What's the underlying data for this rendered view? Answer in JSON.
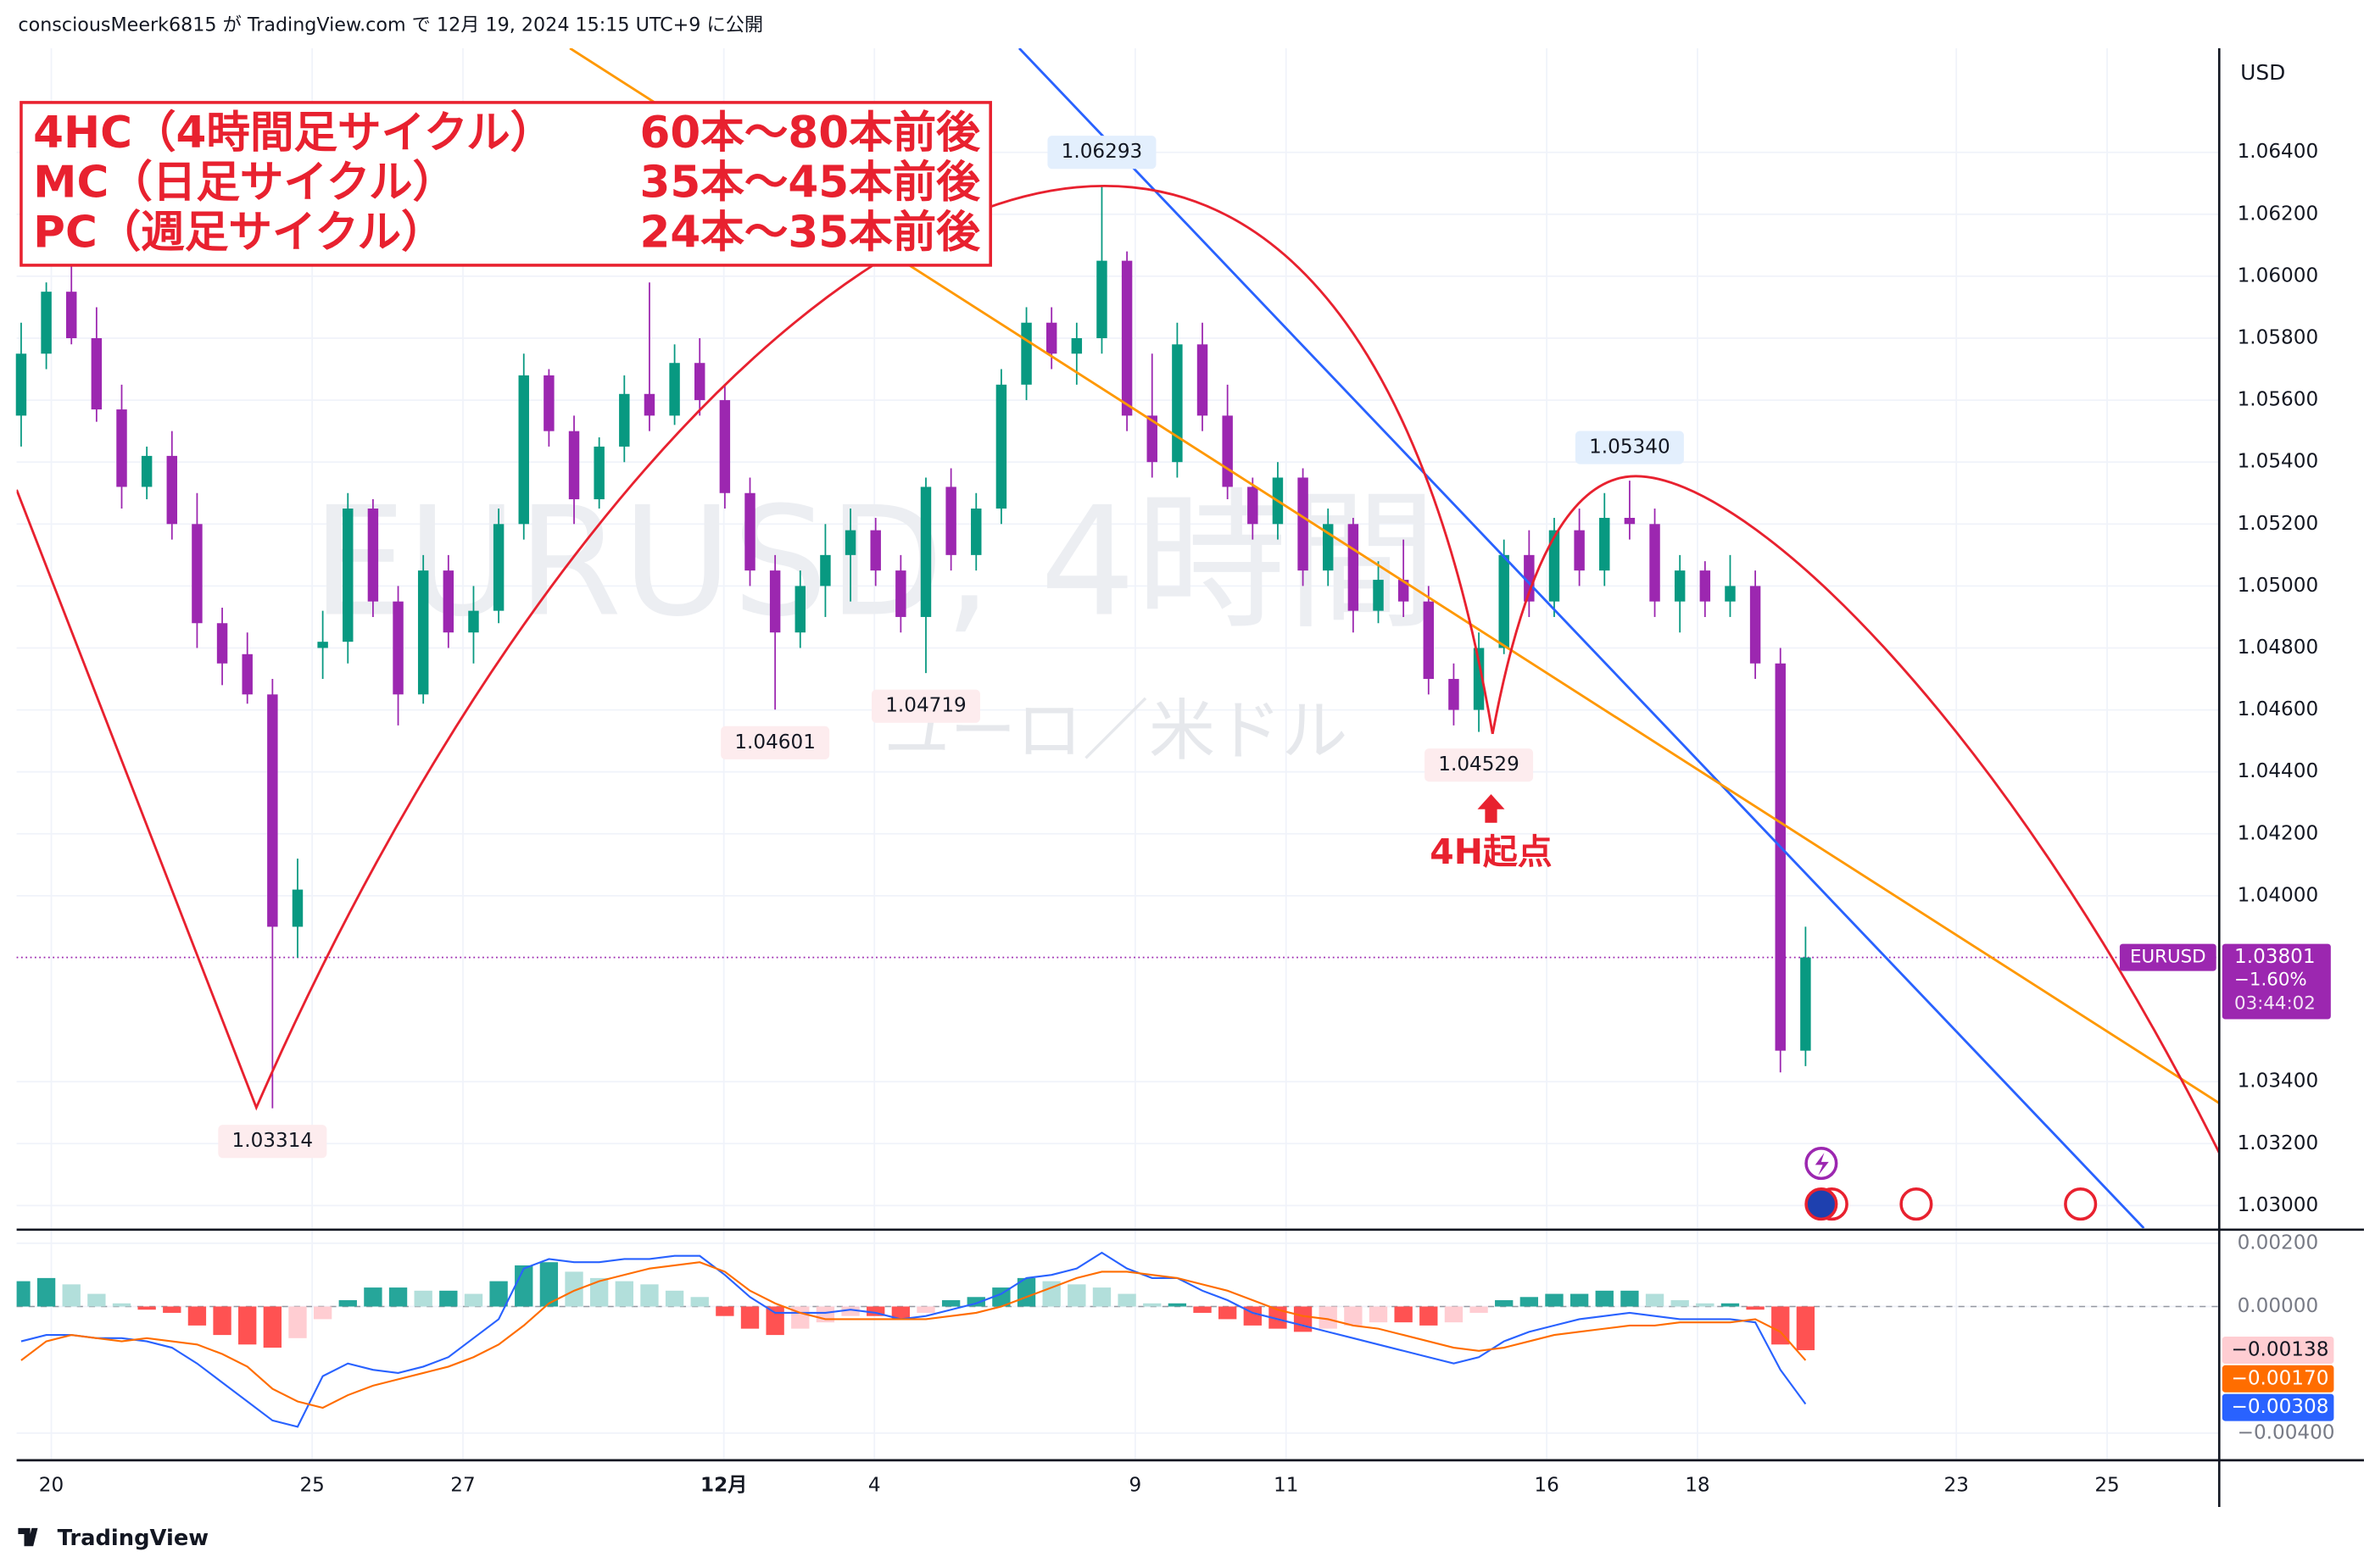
{
  "header": {
    "text": "consciousMeerk6815 が TradingView.com で 12月 19, 2024 15:15 UTC+9 に公開"
  },
  "footer": {
    "brand": "TradingView"
  },
  "chart_data": {
    "type": "candlestick",
    "title": "EURUSD, 4時間",
    "subtitle": "ユーロ／米ドル",
    "currency": "USD",
    "up_color": "#089981",
    "down_color": "#9c27b0",
    "grid": true,
    "open": [
      1.0555,
      1.0575,
      1.0595,
      1.058,
      1.0557,
      1.0532,
      1.0542,
      1.052,
      1.0488,
      1.0478,
      1.0465,
      1.039,
      1.048,
      1.0482,
      1.0525,
      1.0495,
      1.0465,
      1.0505,
      1.0485,
      1.0492,
      1.052,
      1.0568,
      1.055,
      1.0528,
      1.0545,
      1.0562,
      1.0555,
      1.0572,
      1.056,
      1.053,
      1.0505,
      1.0485,
      1.05,
      1.051,
      1.0518,
      1.0505,
      1.049,
      1.0532,
      1.051,
      1.0525,
      1.0565,
      1.0585,
      1.0575,
      1.058,
      1.0605,
      1.0555,
      1.054,
      1.0578,
      1.0555,
      1.0532,
      1.052,
      1.0535,
      1.0505,
      1.052,
      1.0492,
      1.0502,
      1.0495,
      1.047,
      1.046,
      1.048,
      1.051,
      1.0495,
      1.0518,
      1.0505,
      1.0522,
      1.052,
      1.0495,
      1.0505,
      1.0495,
      1.05,
      1.0475,
      1.035
    ],
    "high": [
      1.0585,
      1.0598,
      1.0605,
      1.059,
      1.0565,
      1.0545,
      1.055,
      1.053,
      1.0493,
      1.0485,
      1.047,
      1.0412,
      1.0492,
      1.053,
      1.0528,
      1.05,
      1.051,
      1.051,
      1.05,
      1.0525,
      1.0575,
      1.057,
      1.0555,
      1.0548,
      1.0568,
      1.0598,
      1.0578,
      1.058,
      1.0565,
      1.0535,
      1.051,
      1.0505,
      1.052,
      1.0525,
      1.0522,
      1.051,
      1.0535,
      1.0538,
      1.053,
      1.057,
      1.059,
      1.059,
      1.0585,
      1.06293,
      1.0608,
      1.0575,
      1.0585,
      1.0585,
      1.0565,
      1.0535,
      1.054,
      1.0538,
      1.0525,
      1.0522,
      1.0508,
      1.0515,
      1.05,
      1.0475,
      1.0485,
      1.0515,
      1.0518,
      1.0522,
      1.0525,
      1.053,
      1.0534,
      1.0525,
      1.051,
      1.0508,
      1.051,
      1.0505,
      1.048,
      1.039
    ],
    "low": [
      1.0545,
      1.057,
      1.0578,
      1.0553,
      1.0525,
      1.0528,
      1.0515,
      1.048,
      1.0468,
      1.0462,
      1.03314,
      1.038,
      1.047,
      1.0475,
      1.049,
      1.0455,
      1.0462,
      1.048,
      1.0475,
      1.0488,
      1.0515,
      1.0545,
      1.052,
      1.0525,
      1.054,
      1.055,
      1.0552,
      1.0555,
      1.0525,
      1.05,
      1.04601,
      1.048,
      1.049,
      1.0495,
      1.05,
      1.0485,
      1.04719,
      1.0505,
      1.0505,
      1.052,
      1.056,
      1.057,
      1.0565,
      1.0575,
      1.055,
      1.0535,
      1.0535,
      1.055,
      1.0528,
      1.0515,
      1.0515,
      1.05,
      1.05,
      1.0485,
      1.0488,
      1.049,
      1.0465,
      1.0455,
      1.04529,
      1.0478,
      1.049,
      1.049,
      1.05,
      1.05,
      1.0515,
      1.049,
      1.0485,
      1.049,
      1.049,
      1.047,
      1.0343,
      1.0345
    ],
    "close": [
      1.0575,
      1.0595,
      1.058,
      1.0557,
      1.0532,
      1.0542,
      1.052,
      1.0488,
      1.0475,
      1.0465,
      1.039,
      1.0402,
      1.0482,
      1.0525,
      1.0495,
      1.0465,
      1.0505,
      1.0485,
      1.0492,
      1.052,
      1.0568,
      1.055,
      1.0528,
      1.0545,
      1.0562,
      1.0555,
      1.0572,
      1.056,
      1.053,
      1.0505,
      1.0485,
      1.05,
      1.051,
      1.0518,
      1.0505,
      1.049,
      1.0532,
      1.051,
      1.0525,
      1.0565,
      1.0585,
      1.0575,
      1.058,
      1.0605,
      1.0555,
      1.054,
      1.0578,
      1.0555,
      1.0532,
      1.052,
      1.0535,
      1.0505,
      1.052,
      1.0492,
      1.0502,
      1.0495,
      1.047,
      1.046,
      1.048,
      1.051,
      1.0495,
      1.0518,
      1.0505,
      1.0522,
      1.052,
      1.0495,
      1.0505,
      1.0495,
      1.05,
      1.0475,
      1.035,
      1.03801
    ],
    "xlim": [
      -0.18,
      87.46
    ],
    "xticks": [
      {
        "value": 1.2,
        "label": "20"
      },
      {
        "value": 11.58,
        "label": "25"
      },
      {
        "value": 17.58,
        "label": "27"
      },
      {
        "value": 27.96,
        "label": "12月"
      },
      {
        "value": 33.95,
        "label": "4"
      },
      {
        "value": 44.33,
        "label": "9"
      },
      {
        "value": 50.33,
        "label": "11"
      },
      {
        "value": 60.7,
        "label": "16"
      },
      {
        "value": 66.7,
        "label": "18"
      },
      {
        "value": 77.0,
        "label": "23"
      },
      {
        "value": 83.0,
        "label": "25"
      }
    ],
    "ylim": [
      1.02927,
      1.06736
    ],
    "yticks": [
      {
        "value": 1.064,
        "label": "1.06400"
      },
      {
        "value": 1.062,
        "label": "1.06200"
      },
      {
        "value": 1.06,
        "label": "1.06000"
      },
      {
        "value": 1.058,
        "label": "1.05800"
      },
      {
        "value": 1.056,
        "label": "1.05600"
      },
      {
        "value": 1.054,
        "label": "1.05400"
      },
      {
        "value": 1.052,
        "label": "1.05200"
      },
      {
        "value": 1.05,
        "label": "1.05000"
      },
      {
        "value": 1.048,
        "label": "1.04800"
      },
      {
        "value": 1.046,
        "label": "1.04600"
      },
      {
        "value": 1.044,
        "label": "1.04400"
      },
      {
        "value": 1.042,
        "label": "1.04200"
      },
      {
        "value": 1.04,
        "label": "1.04000"
      },
      {
        "value": 1.034,
        "label": "1.03400"
      },
      {
        "value": 1.032,
        "label": "1.03200"
      },
      {
        "value": 1.03,
        "label": "1.03000"
      }
    ],
    "high_marks": [
      {
        "value": 1.06293,
        "label": "1.06293"
      },
      {
        "value": 1.0534,
        "label": "1.05340"
      }
    ],
    "low_marks": [
      1.04601,
      1.04719,
      1.04529,
      1.03314
    ],
    "symbol": "EURUSD",
    "last_price": 1.03801,
    "change": {
      "value": -1.6,
      "label": "−1.60%"
    },
    "countdown": "03:44:02",
    "note_lines": [
      [
        "4HC（4時間足サイクル）",
        "60本〜80本前後"
      ],
      [
        "MC（日足サイクル）",
        "35本〜45本前後"
      ],
      [
        "PC（週足サイクル）",
        "24本〜35本前後"
      ]
    ],
    "callout": "4H起点",
    "indicator": {
      "type": "macd",
      "ylim": [
        -0.00481,
        0.00238
      ],
      "yticks": [
        {
          "value": 0.002,
          "label": "0.00200"
        },
        {
          "value": 0,
          "label": "0.00000"
        },
        {
          "value": -0.004,
          "label": "−0.00400"
        }
      ],
      "histogram": {
        "values": [
          0.0008,
          0.0009,
          0.0007,
          0.0004,
          0.0001,
          -0.0001,
          -0.0002,
          -0.0006,
          -0.0009,
          -0.0012,
          -0.0013,
          -0.001,
          -0.0004,
          0.0002,
          0.0006,
          0.0006,
          0.0005,
          0.0005,
          0.0004,
          0.0008,
          0.0013,
          0.0014,
          0.0011,
          0.0009,
          0.0008,
          0.0007,
          0.0005,
          0.0003,
          -0.0003,
          -0.0007,
          -0.0009,
          -0.0007,
          -0.0005,
          -0.0003,
          -0.0003,
          -0.0004,
          -0.0002,
          0.0002,
          0.0003,
          0.0006,
          0.0009,
          0.0008,
          0.0007,
          0.0006,
          0.0004,
          0.0001,
          0.0001,
          -0.0002,
          -0.0004,
          -0.0006,
          -0.0007,
          -0.0008,
          -0.0007,
          -0.0006,
          -0.0005,
          -0.0005,
          -0.0006,
          -0.0005,
          -0.0002,
          0.0002,
          0.0003,
          0.0004,
          0.0004,
          0.0005,
          0.0005,
          0.0004,
          0.0002,
          0.0001,
          0.0001,
          -0.0001,
          -0.0012,
          -0.00138
        ],
        "last_label": "−0.00138"
      },
      "series": [
        {
          "color": "#2962ff",
          "values": [
            -0.0011,
            -0.0009,
            -0.0009,
            -0.001,
            -0.001,
            -0.0011,
            -0.0013,
            -0.0018,
            -0.0024,
            -0.003,
            -0.0036,
            -0.0038,
            -0.0022,
            -0.0018,
            -0.002,
            -0.0021,
            -0.0019,
            -0.0016,
            -0.001,
            -0.0004,
            0.0012,
            0.0015,
            0.0014,
            0.0014,
            0.0015,
            0.0015,
            0.0016,
            0.0016,
            0.001,
            0.0003,
            -0.0002,
            -0.0002,
            -0.0002,
            -0.0001,
            -0.0002,
            -0.0004,
            -0.0003,
            -0.0001,
            0.0001,
            0.0004,
            0.0009,
            0.001,
            0.0012,
            0.0017,
            0.0012,
            0.0009,
            0.0009,
            0.0005,
            0.0002,
            -0.0002,
            -0.0004,
            -0.0006,
            -0.0008,
            -0.001,
            -0.0012,
            -0.0014,
            -0.0016,
            -0.0018,
            -0.0016,
            -0.0011,
            -0.0008,
            -0.0006,
            -0.0004,
            -0.0003,
            -0.0002,
            -0.0003,
            -0.0004,
            -0.0004,
            -0.0004,
            -0.0005,
            -0.002,
            -0.00308
          ],
          "last_label": "−0.00308"
        },
        {
          "color": "#ff6d00",
          "values": [
            -0.0017,
            -0.0011,
            -0.0009,
            -0.001,
            -0.0011,
            -0.001,
            -0.0011,
            -0.0012,
            -0.0015,
            -0.0019,
            -0.0026,
            -0.003,
            -0.0032,
            -0.0028,
            -0.0025,
            -0.0023,
            -0.0021,
            -0.0019,
            -0.0016,
            -0.0012,
            -0.0006,
            0.0001,
            0.0005,
            0.0008,
            0.001,
            0.0012,
            0.0013,
            0.0014,
            0.0011,
            0.0005,
            0.0001,
            -0.0002,
            -0.0004,
            -0.0004,
            -0.0004,
            -0.0004,
            -0.0004,
            -0.0003,
            -0.0002,
            0.0,
            0.0003,
            0.0006,
            0.0009,
            0.0011,
            0.0011,
            0.001,
            0.0009,
            0.0007,
            0.0005,
            0.0002,
            -0.0001,
            -0.0003,
            -0.0004,
            -0.0006,
            -0.0007,
            -0.0009,
            -0.0011,
            -0.0013,
            -0.0014,
            -0.0013,
            -0.0011,
            -0.0009,
            -0.0008,
            -0.0007,
            -0.0006,
            -0.0006,
            -0.0005,
            -0.0005,
            -0.0005,
            -0.0004,
            -0.0008,
            -0.0017
          ],
          "last_label": "−0.00170"
        }
      ]
    }
  }
}
